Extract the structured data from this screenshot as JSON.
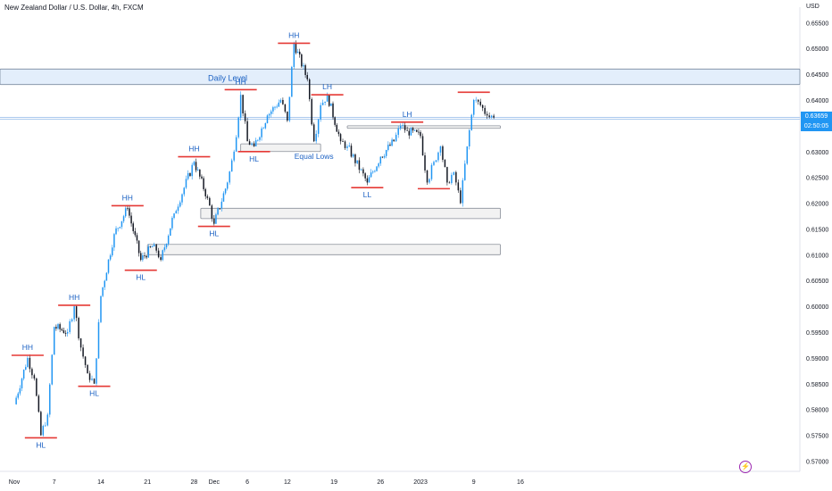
{
  "header": {
    "title": "New Zealand Dollar / U.S. Dollar, 4h, FXCM",
    "currency": "USD"
  },
  "last_price": {
    "value": "0.63659",
    "countdown": "02:50:05",
    "color": "#2196f3"
  },
  "lightning_icon": "lightning-bolt-icon",
  "colors": {
    "up": "#2196f3",
    "down": "#131722",
    "marker": "#e53935",
    "zone_fill": "#f2f2f2",
    "daily_fill": "#e3eefb",
    "label": "#1e63c4"
  },
  "chart_data": {
    "type": "candlestick",
    "symbol": "NZDUSD",
    "timeframe": "4h",
    "ylim": [
      0.568,
      0.658
    ],
    "y_ticks": [
      "0.57000",
      "0.57500",
      "0.58000",
      "0.58500",
      "0.59000",
      "0.59500",
      "0.60000",
      "0.60500",
      "0.61000",
      "0.61500",
      "0.62000",
      "0.62500",
      "0.63000",
      "0.63500",
      "0.64000",
      "0.64500",
      "0.65000",
      "0.65500"
    ],
    "x_ticks": [
      "Nov",
      "7",
      "14",
      "21",
      "28",
      "Dec",
      "6",
      "12",
      "19",
      "26",
      "2023",
      "9",
      "16"
    ],
    "price_path": [
      {
        "date": "Nov 1",
        "price": 0.581
      },
      {
        "date": "Nov 3",
        "price": 0.59
      },
      {
        "date": "Nov 4",
        "price": 0.586
      },
      {
        "date": "Nov 5",
        "price": 0.575
      },
      {
        "date": "Nov 6",
        "price": 0.579
      },
      {
        "date": "Nov 7",
        "price": 0.596
      },
      {
        "date": "Nov 9",
        "price": 0.595
      },
      {
        "date": "Nov 10",
        "price": 0.6
      },
      {
        "date": "Nov 11",
        "price": 0.592
      },
      {
        "date": "Nov 12",
        "price": 0.587
      },
      {
        "date": "Nov 13",
        "price": 0.585
      },
      {
        "date": "Nov 14",
        "price": 0.602
      },
      {
        "date": "Nov 16",
        "price": 0.614
      },
      {
        "date": "Nov 18",
        "price": 0.619
      },
      {
        "date": "Nov 20",
        "price": 0.609
      },
      {
        "date": "Nov 22",
        "price": 0.612
      },
      {
        "date": "Nov 23",
        "price": 0.609
      },
      {
        "date": "Nov 25",
        "price": 0.618
      },
      {
        "date": "Nov 28",
        "price": 0.628
      },
      {
        "date": "Nov 30",
        "price": 0.621
      },
      {
        "date": "Dec 1",
        "price": 0.616
      },
      {
        "date": "Dec 3",
        "price": 0.624
      },
      {
        "date": "Dec 4",
        "price": 0.63
      },
      {
        "date": "Dec 5",
        "price": 0.641
      },
      {
        "date": "Dec 6",
        "price": 0.632
      },
      {
        "date": "Dec 7",
        "price": 0.631
      },
      {
        "date": "Dec 9",
        "price": 0.637
      },
      {
        "date": "Dec 11",
        "price": 0.64
      },
      {
        "date": "Dec 12",
        "price": 0.636
      },
      {
        "date": "Dec 13",
        "price": 0.651
      },
      {
        "date": "Dec 15",
        "price": 0.644
      },
      {
        "date": "Dec 16",
        "price": 0.632
      },
      {
        "date": "Dec 17",
        "price": 0.639
      },
      {
        "date": "Dec 18",
        "price": 0.641
      },
      {
        "date": "Dec 20",
        "price": 0.632
      },
      {
        "date": "Dec 21",
        "price": 0.631
      },
      {
        "date": "Dec 24",
        "price": 0.624
      },
      {
        "date": "Dec 26",
        "price": 0.629
      },
      {
        "date": "Dec 28",
        "price": 0.632
      },
      {
        "date": "Dec 29",
        "price": 0.635
      },
      {
        "date": "Dec 30",
        "price": 0.634
      },
      {
        "date": "Jan 1",
        "price": 0.633
      },
      {
        "date": "Jan 2",
        "price": 0.624
      },
      {
        "date": "Jan 3",
        "price": 0.628
      },
      {
        "date": "Jan 4",
        "price": 0.631
      },
      {
        "date": "Jan 5",
        "price": 0.624
      },
      {
        "date": "Jan 6",
        "price": 0.626
      },
      {
        "date": "Jan 7",
        "price": 0.62
      },
      {
        "date": "Jan 8",
        "price": 0.631
      },
      {
        "date": "Jan 9",
        "price": 0.64
      },
      {
        "date": "Jan 10",
        "price": 0.639
      },
      {
        "date": "Jan 11",
        "price": 0.637
      },
      {
        "date": "Jan 12",
        "price": 0.6366
      }
    ],
    "zones": [
      {
        "name": "daily-level",
        "label": "Daily Level",
        "from": "Nov 1",
        "to": "Jan 19",
        "top": 0.646,
        "bottom": 0.643,
        "fill": "#e3eefb",
        "border": "#7a8aa0"
      },
      {
        "name": "zone-dec7",
        "from": "Dec 5",
        "to": "Dec 17",
        "top": 0.6315,
        "bottom": 0.63
      },
      {
        "name": "zone-upper-right",
        "from": "Dec 21",
        "to": "Jan 13",
        "top": 0.635,
        "bottom": 0.6345
      },
      {
        "name": "zone-mid",
        "from": "Nov 29",
        "to": "Jan 13",
        "top": 0.619,
        "bottom": 0.617
      },
      {
        "name": "zone-low",
        "from": "Nov 21",
        "to": "Jan 13",
        "top": 0.612,
        "bottom": 0.61
      }
    ],
    "levels": [
      {
        "name": "last-price-line",
        "price": 0.6366
      },
      {
        "name": "upper-level-line",
        "price": 0.6363
      }
    ],
    "annotations": [
      {
        "label": "HH",
        "date": "Nov 3",
        "price": 0.5905,
        "pos": "above"
      },
      {
        "label": "HL",
        "date": "Nov 5",
        "price": 0.5745,
        "pos": "below"
      },
      {
        "label": "HH",
        "date": "Nov 10",
        "price": 0.6002,
        "pos": "above"
      },
      {
        "label": "HL",
        "date": "Nov 13",
        "price": 0.5845,
        "pos": "below"
      },
      {
        "label": "HH",
        "date": "Nov 18",
        "price": 0.6195,
        "pos": "above"
      },
      {
        "label": "HL",
        "date": "Nov 20",
        "price": 0.607,
        "pos": "below"
      },
      {
        "label": "HH",
        "date": "Nov 28",
        "price": 0.629,
        "pos": "above"
      },
      {
        "label": "HL",
        "date": "Dec 1",
        "price": 0.6155,
        "pos": "below"
      },
      {
        "label": "HH",
        "date": "Dec 5",
        "price": 0.642,
        "pos": "above"
      },
      {
        "label": "HL",
        "date": "Dec 7",
        "price": 0.63,
        "pos": "below"
      },
      {
        "label": "HH",
        "date": "Dec 13",
        "price": 0.651,
        "pos": "above"
      },
      {
        "label": "Equal Lows",
        "date": "Dec 16",
        "price": 0.6305,
        "pos": "below",
        "no_marker": true
      },
      {
        "label": "LH",
        "date": "Dec 18",
        "price": 0.641,
        "pos": "above"
      },
      {
        "label": "LL",
        "date": "Dec 24",
        "price": 0.623,
        "pos": "below"
      },
      {
        "label": "LH",
        "date": "Dec 30",
        "price": 0.6357,
        "pos": "above"
      },
      {
        "label": "HL",
        "date": "Jan 3",
        "price": 0.6228,
        "pos": "below",
        "no_text": true
      },
      {
        "label": "LH",
        "date": "Jan 9",
        "price": 0.6415,
        "pos": "above",
        "no_text": true
      }
    ]
  }
}
